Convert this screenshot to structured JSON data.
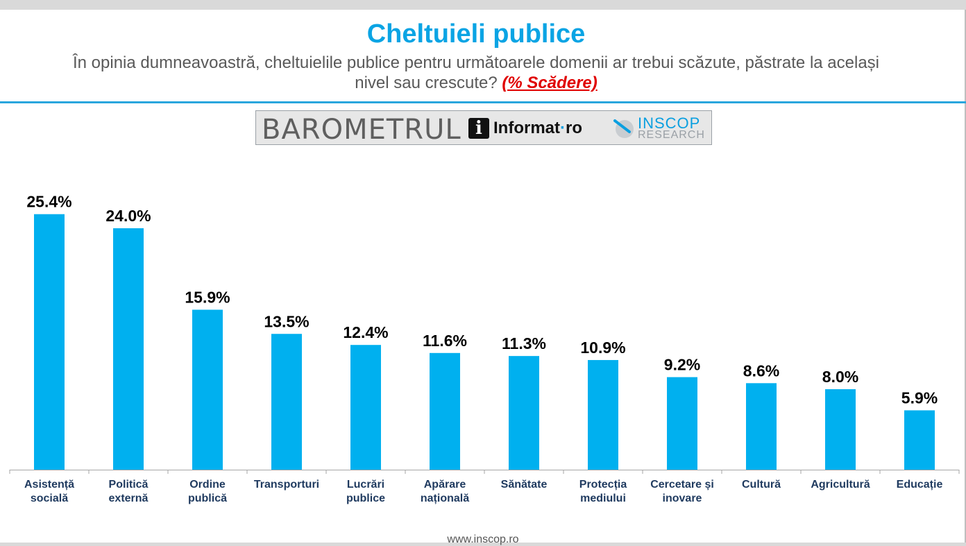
{
  "header": {
    "title": "Cheltuieli publice",
    "question": "În opinia dumneavoastră, cheltuielile publice pentru următoarele domenii ar trebui scăzute, păstrate la același nivel sau crescute?",
    "question_highlight": "(% Scădere)"
  },
  "branding": {
    "barometrul": "BAROMETRUL",
    "informat": "Informat",
    "informat_suffix": "ro",
    "informat_icon": "i",
    "inscop": "INSCOP",
    "inscop_sub": "RESEARCH"
  },
  "footer": {
    "url": "www.inscop.ro"
  },
  "colors": {
    "bar": "#00b0ef",
    "title": "#0aa4e4",
    "highlight": "#e00000"
  },
  "chart_data": {
    "type": "bar",
    "title": "Cheltuieli publice",
    "categories": [
      [
        "Asistență",
        "socială"
      ],
      [
        "Politică",
        "externă"
      ],
      [
        "Ordine",
        "publică"
      ],
      [
        "Transporturi"
      ],
      [
        "Lucrări",
        "publice"
      ],
      [
        "Apărare",
        "națională"
      ],
      [
        "Sănătate"
      ],
      [
        "Protecția",
        "mediului"
      ],
      [
        "Cercetare și",
        "inovare"
      ],
      [
        "Cultură"
      ],
      [
        "Agricultură"
      ],
      [
        "Educație"
      ]
    ],
    "values": [
      25.4,
      24.0,
      15.9,
      13.5,
      12.4,
      11.6,
      11.3,
      10.9,
      9.2,
      8.6,
      8.0,
      5.9
    ],
    "value_labels": [
      "25.4%",
      "24.0%",
      "15.9%",
      "13.5%",
      "12.4%",
      "11.6%",
      "11.3%",
      "10.9%",
      "9.2%",
      "8.6%",
      "8.0%",
      "5.9%"
    ],
    "ylim": [
      0,
      26
    ],
    "grid": false,
    "legend": "none"
  }
}
